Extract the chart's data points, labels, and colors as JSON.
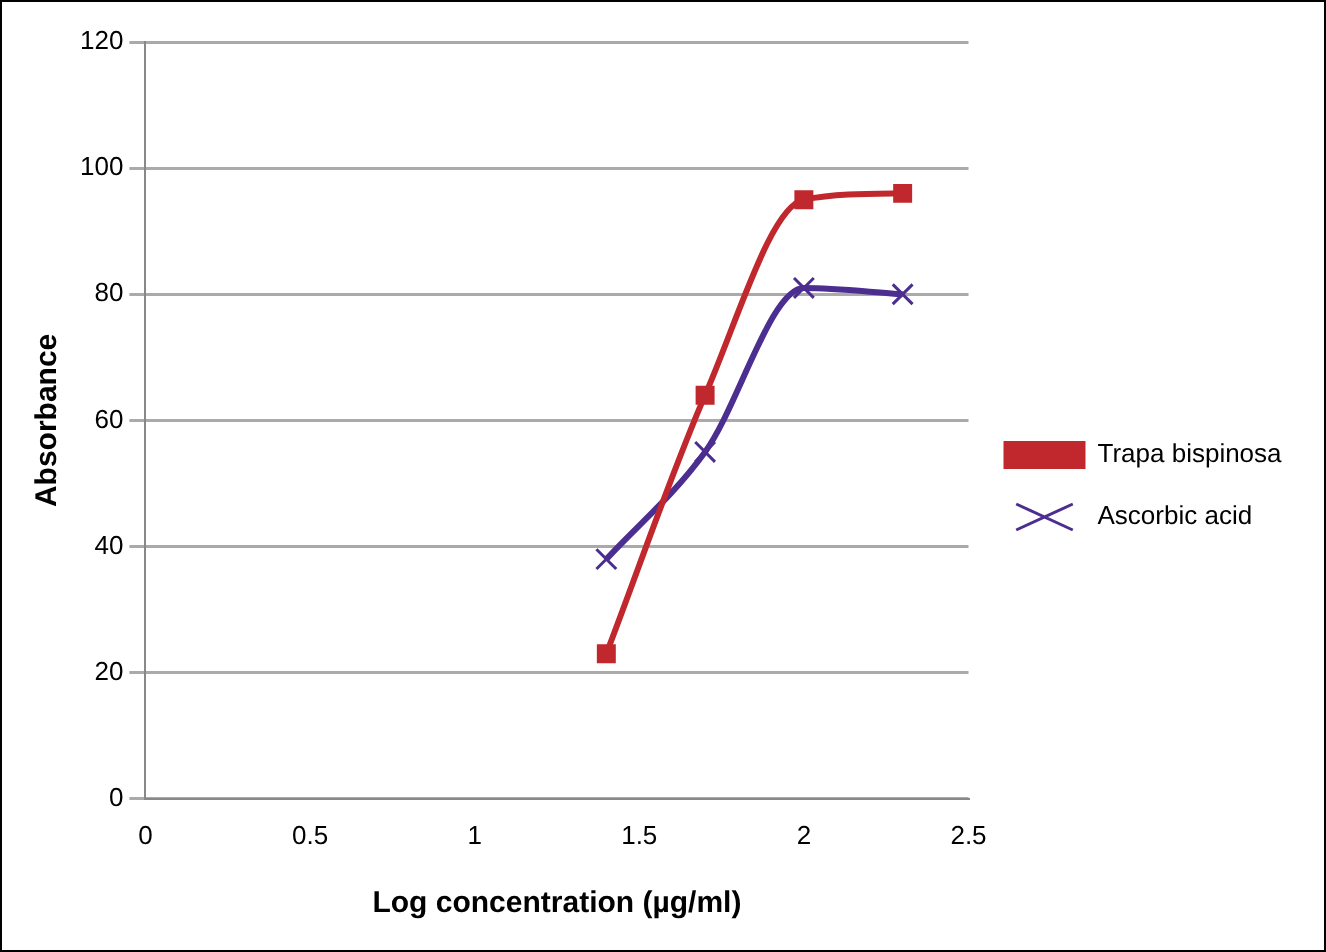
{
  "chart_data": {
    "type": "line",
    "xlabel": "Log concentration (µg/ml)",
    "ylabel": "Absorbance",
    "x": [
      1.4,
      1.7,
      2.0,
      2.3
    ],
    "series": [
      {
        "name": "Trapa bispinosa",
        "color": "#c0282d",
        "values": [
          23,
          64,
          95,
          96
        ],
        "marker": "square"
      },
      {
        "name": "Ascorbic acid",
        "color": "#4b2e8f",
        "values": [
          38,
          55,
          81,
          80
        ],
        "marker": "cross"
      }
    ],
    "xlim": [
      0,
      2.5
    ],
    "xticks": [
      0,
      0.5,
      1,
      1.5,
      2,
      2.5
    ],
    "ylim": [
      0,
      120
    ],
    "yticks": [
      0,
      20,
      40,
      60,
      80,
      100,
      120
    ],
    "grid": "y",
    "legend": "right",
    "line_style": "solid"
  }
}
